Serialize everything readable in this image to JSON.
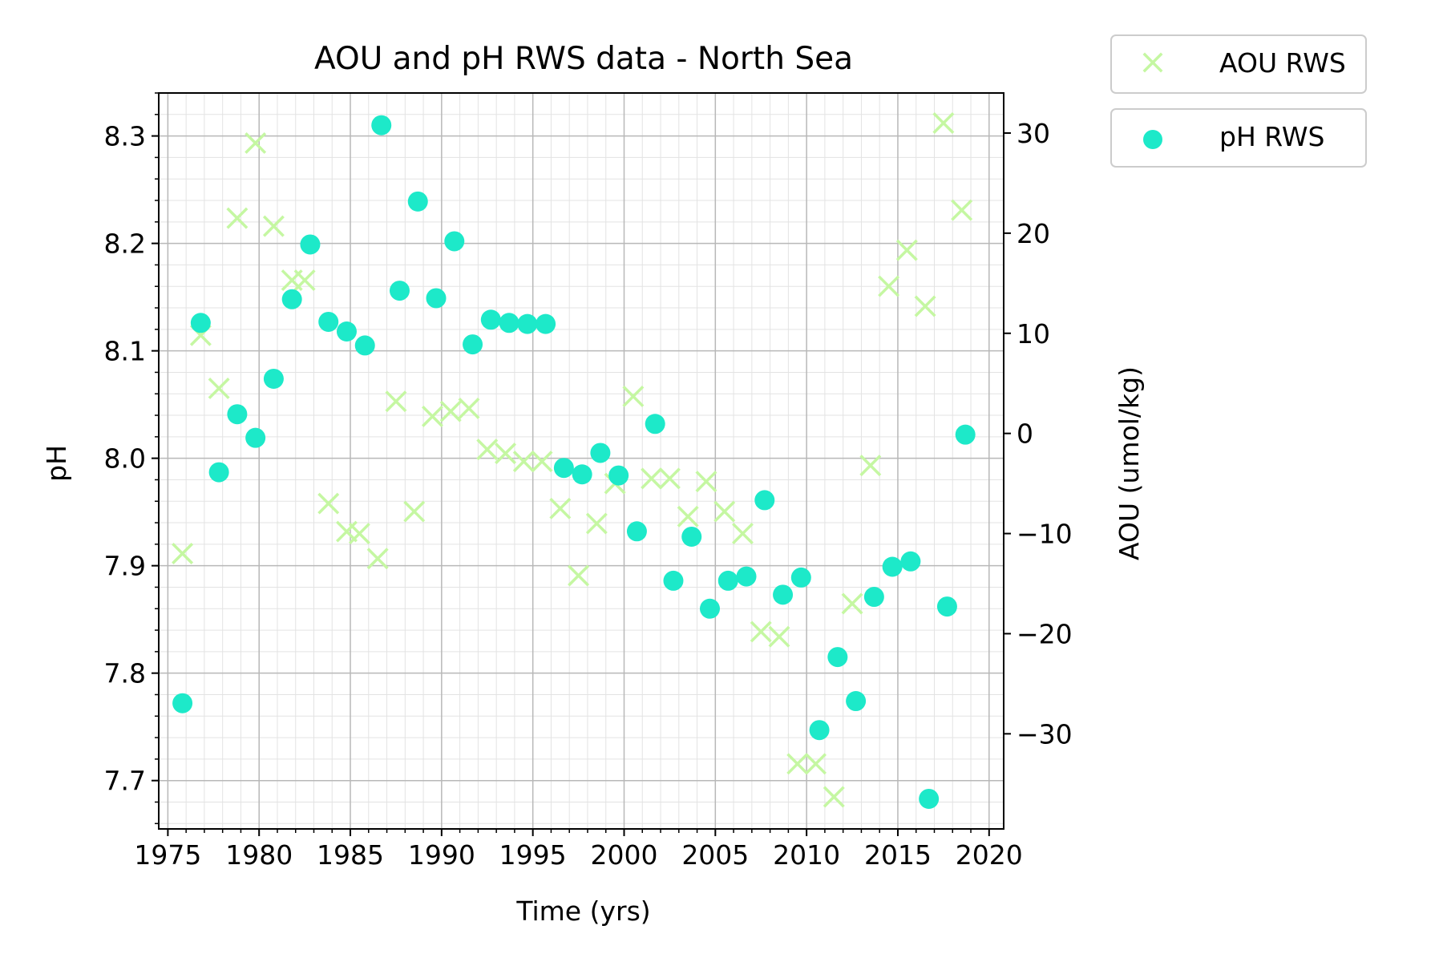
{
  "chart_data": {
    "type": "scatter",
    "title": "AOU and pH RWS data - North Sea",
    "xlabel": "Time (yrs)",
    "ylabel_left": "pH",
    "ylabel_right": "AOU (umol/kg)",
    "xlim": [
      1974.5,
      2020.8
    ],
    "ylim_left": [
      7.655,
      8.34
    ],
    "ylim_right": [
      -39.5,
      34
    ],
    "x_ticks": [
      1975,
      1980,
      1985,
      1990,
      1995,
      2000,
      2005,
      2010,
      2015,
      2020
    ],
    "y_left_ticks": [
      "7.7",
      "7.8",
      "7.9",
      "8.0",
      "8.1",
      "8.2",
      "8.3"
    ],
    "y_right_ticks": [
      "−30",
      "−20",
      "−10",
      "0",
      "10",
      "20",
      "30"
    ],
    "grid": true,
    "legend_position": "outside top-right",
    "series": [
      {
        "name": "AOU RWS",
        "axis": "right",
        "marker": "x",
        "color": "#c5f7a2",
        "points": [
          [
            1975.8,
            -12.0
          ],
          [
            1976.8,
            9.8
          ],
          [
            1977.8,
            4.5
          ],
          [
            1978.8,
            21.5
          ],
          [
            1979.8,
            29.0
          ],
          [
            1980.8,
            20.7
          ],
          [
            1981.8,
            15.3
          ],
          [
            1982.5,
            15.3
          ],
          [
            1983.8,
            -7.0
          ],
          [
            1984.8,
            -9.8
          ],
          [
            1985.5,
            -10.0
          ],
          [
            1986.5,
            -12.5
          ],
          [
            1987.5,
            3.2
          ],
          [
            1988.5,
            -7.8
          ],
          [
            1989.5,
            1.7
          ],
          [
            1990.5,
            2.2
          ],
          [
            1991.5,
            2.5
          ],
          [
            1992.5,
            -1.6
          ],
          [
            1993.5,
            -2.0
          ],
          [
            1994.5,
            -2.8
          ],
          [
            1995.5,
            -2.8
          ],
          [
            1996.5,
            -7.5
          ],
          [
            1997.5,
            -14.2
          ],
          [
            1998.5,
            -9.0
          ],
          [
            1999.5,
            -5.0
          ],
          [
            2000.5,
            3.7
          ],
          [
            2001.5,
            -4.5
          ],
          [
            2002.5,
            -4.5
          ],
          [
            2003.5,
            -8.3
          ],
          [
            2004.5,
            -4.8
          ],
          [
            2005.5,
            -7.8
          ],
          [
            2006.5,
            -10.0
          ],
          [
            2007.5,
            -19.8
          ],
          [
            2008.5,
            -20.3
          ],
          [
            2009.5,
            -33.0
          ],
          [
            2010.5,
            -33.0
          ],
          [
            2011.5,
            -36.3
          ],
          [
            2012.5,
            -17.0
          ],
          [
            2013.5,
            -3.2
          ],
          [
            2014.5,
            14.7
          ],
          [
            2015.5,
            18.3
          ],
          [
            2016.5,
            12.7
          ],
          [
            2017.5,
            31.0
          ],
          [
            2018.5,
            22.3
          ]
        ]
      },
      {
        "name": "pH RWS",
        "axis": "left",
        "marker": "o",
        "color": "#1de9c9",
        "points": [
          [
            1975.8,
            7.772
          ],
          [
            1976.8,
            8.126
          ],
          [
            1977.8,
            7.987
          ],
          [
            1978.8,
            8.041
          ],
          [
            1979.8,
            8.019
          ],
          [
            1980.8,
            8.074
          ],
          [
            1981.8,
            8.148
          ],
          [
            1982.8,
            8.199
          ],
          [
            1983.8,
            8.127
          ],
          [
            1984.8,
            8.118
          ],
          [
            1985.8,
            8.105
          ],
          [
            1986.7,
            8.31
          ],
          [
            1987.7,
            8.156
          ],
          [
            1988.7,
            8.239
          ],
          [
            1989.7,
            8.149
          ],
          [
            1990.7,
            8.202
          ],
          [
            1991.7,
            8.106
          ],
          [
            1992.7,
            8.129
          ],
          [
            1993.7,
            8.126
          ],
          [
            1994.7,
            8.125
          ],
          [
            1995.7,
            8.125
          ],
          [
            1996.7,
            7.991
          ],
          [
            1997.7,
            7.985
          ],
          [
            1998.7,
            8.005
          ],
          [
            1999.7,
            7.984
          ],
          [
            2000.7,
            7.932
          ],
          [
            2001.7,
            8.032
          ],
          [
            2002.7,
            7.886
          ],
          [
            2003.7,
            7.927
          ],
          [
            2004.7,
            7.86
          ],
          [
            2005.7,
            7.886
          ],
          [
            2006.7,
            7.89
          ],
          [
            2007.7,
            7.961
          ],
          [
            2008.7,
            7.873
          ],
          [
            2009.7,
            7.889
          ],
          [
            2010.7,
            7.747
          ],
          [
            2011.7,
            7.815
          ],
          [
            2012.7,
            7.774
          ],
          [
            2013.7,
            7.871
          ],
          [
            2014.7,
            7.899
          ],
          [
            2015.7,
            7.904
          ],
          [
            2016.7,
            7.683
          ],
          [
            2017.7,
            7.862
          ],
          [
            2018.7,
            8.022
          ]
        ]
      }
    ]
  }
}
